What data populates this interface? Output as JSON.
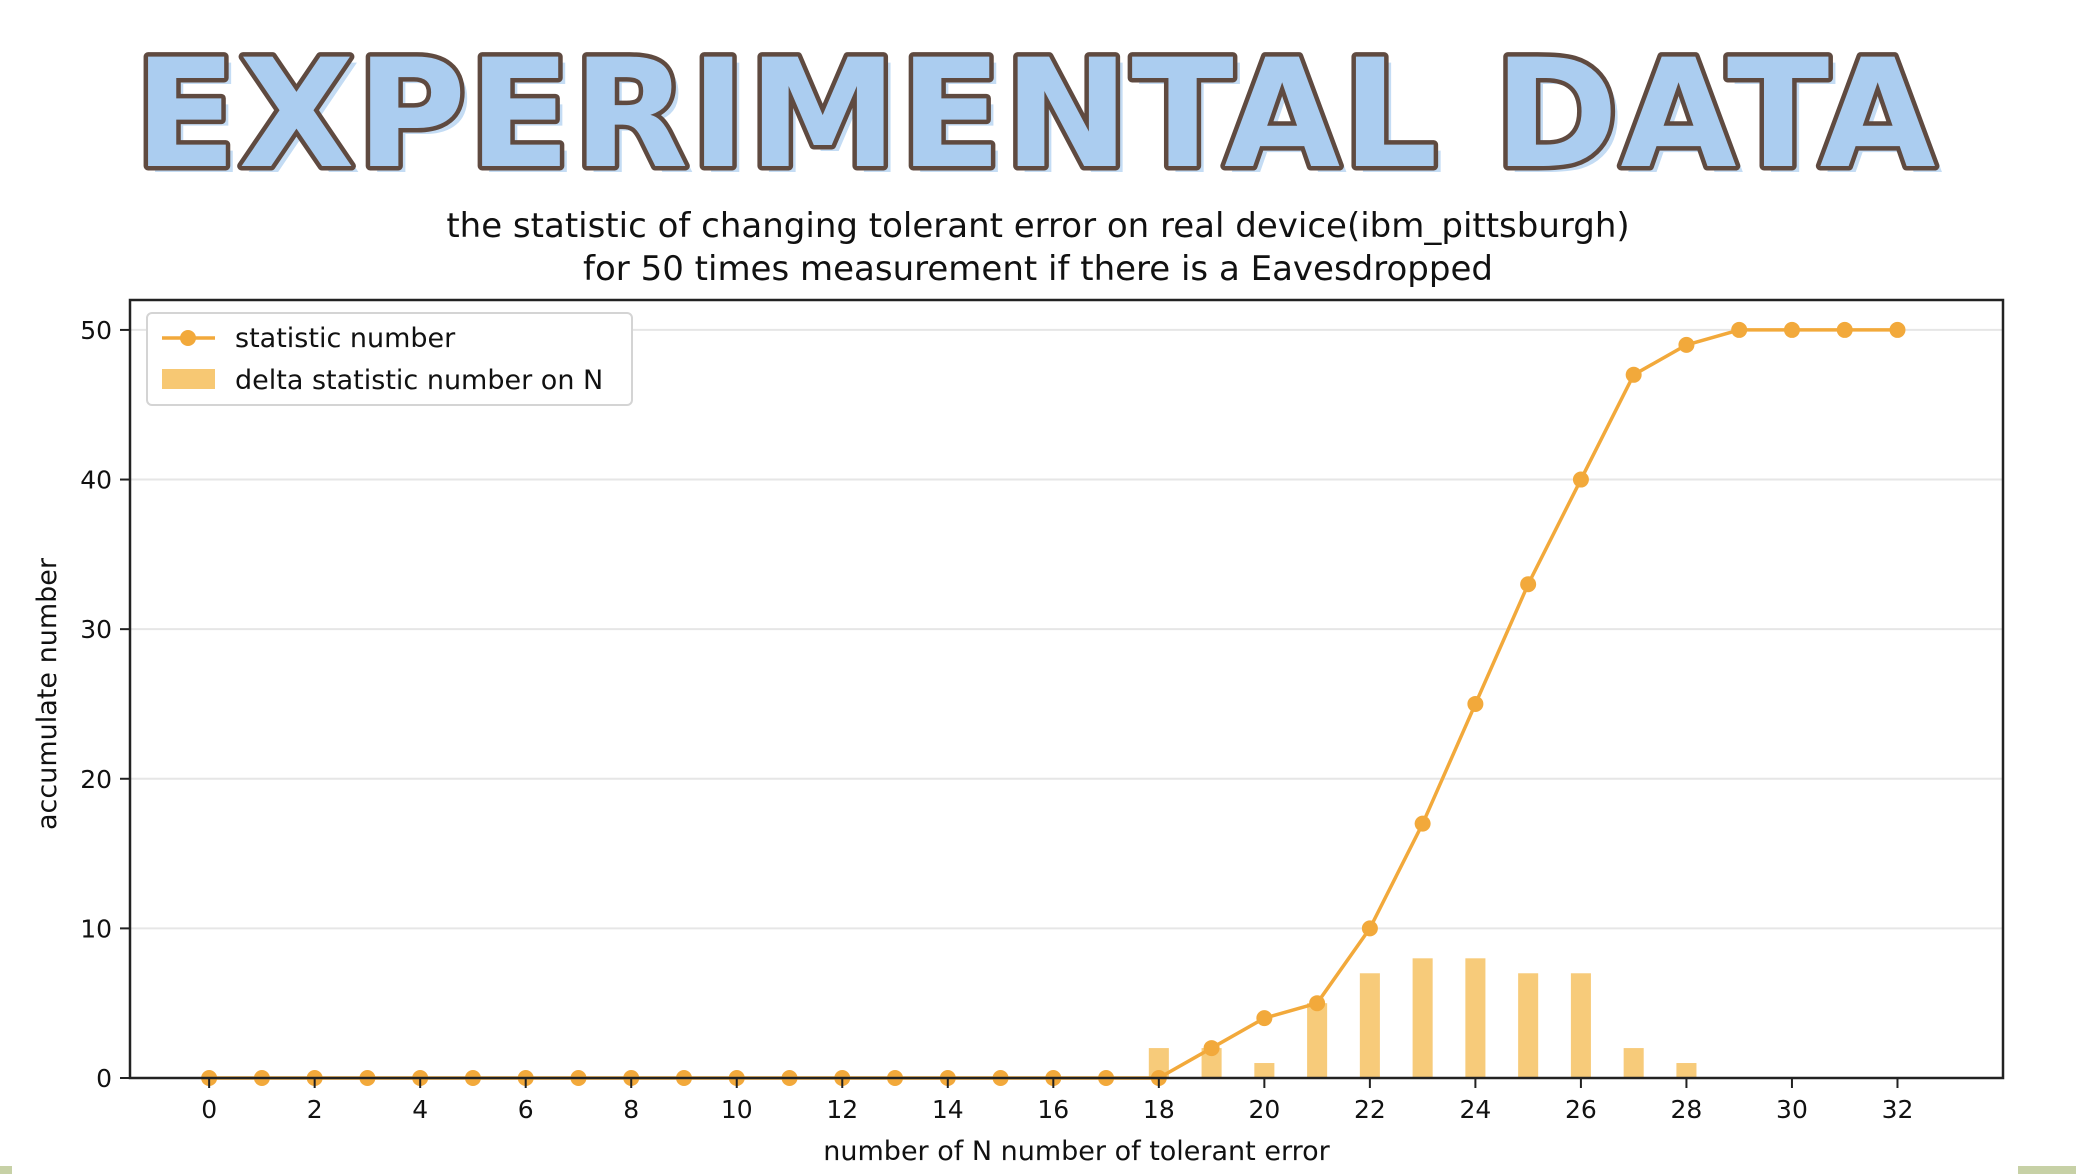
{
  "banner": {
    "title": "EXPERIMENTAL DATA"
  },
  "colors": {
    "banner_fill": "#abcdf0",
    "banner_outline": "#5f4a40",
    "series_line": "#f2a93b",
    "series_bar": "#f7c873",
    "axes": "#222222",
    "grid": "#e6e6e6"
  },
  "chart_data": {
    "type": "line",
    "title": "the statistic of changing tolerant error on real device(ibm_pittsburgh)",
    "subtitle": "for 50 times measurement if there is a Eavesdropped",
    "xlabel": "number of N number of tolerant error",
    "ylabel": "accumulate number",
    "xlim": [
      -1.5,
      34
    ],
    "ylim": [
      0,
      52
    ],
    "x_ticks": [
      0,
      2,
      4,
      6,
      8,
      10,
      12,
      14,
      16,
      18,
      20,
      22,
      24,
      26,
      28,
      30,
      32
    ],
    "y_ticks": [
      0,
      10,
      20,
      30,
      40,
      50
    ],
    "grid": "horizontal",
    "legend_position": "top-left",
    "series": [
      {
        "name": "statistic number",
        "type": "line",
        "x": [
          0,
          1,
          2,
          3,
          4,
          5,
          6,
          7,
          8,
          9,
          10,
          11,
          12,
          13,
          14,
          15,
          16,
          17,
          18,
          19,
          20,
          21,
          22,
          23,
          24,
          25,
          26,
          27,
          28,
          29,
          30,
          31,
          32
        ],
        "values": [
          0,
          0,
          0,
          0,
          0,
          0,
          0,
          0,
          0,
          0,
          0,
          0,
          0,
          0,
          0,
          0,
          0,
          0,
          0,
          2,
          4,
          5,
          10,
          17,
          25,
          33,
          40,
          47,
          49,
          50,
          50,
          50,
          50
        ]
      },
      {
        "name": "delta statistic number on N",
        "type": "bar",
        "x": [
          0,
          1,
          2,
          3,
          4,
          5,
          6,
          7,
          8,
          9,
          10,
          11,
          12,
          13,
          14,
          15,
          16,
          17,
          18,
          19,
          20,
          21,
          22,
          23,
          24,
          25,
          26,
          27,
          28,
          29,
          30,
          31,
          32
        ],
        "values": [
          0,
          0,
          0,
          0,
          0,
          0,
          0,
          0,
          0,
          0,
          0,
          0,
          0,
          0,
          0,
          0,
          0,
          0,
          2,
          2,
          1,
          5,
          7,
          8,
          8,
          7,
          7,
          2,
          1,
          0,
          0,
          0,
          0
        ]
      }
    ]
  }
}
